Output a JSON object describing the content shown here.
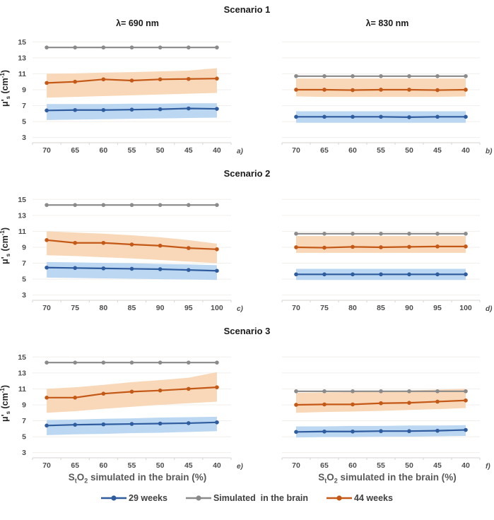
{
  "figure": {
    "scenarios": [
      "Scenario 1",
      "Scenario 2",
      "Scenario 3"
    ],
    "col_headers": [
      "λ= 690 nm",
      "λ= 830 nm"
    ],
    "ylabel_text": "μ's (cm-1)",
    "ylabel_parts": {
      "mu": "μ'",
      "sub": "s",
      "open": " (cm",
      "sup": "-1",
      "close": ")"
    },
    "xaxis_title_text": "StO2 simulated in the brain (%)",
    "xaxis_title_parts": [
      [
        "S",
        ""
      ],
      [
        "t",
        "sub"
      ],
      [
        "O",
        ""
      ],
      [
        "2",
        "sub"
      ],
      [
        " simulated in the brain (%)",
        ""
      ]
    ],
    "legend": {
      "items": [
        {
          "label": "29 weeks",
          "color": "#2e5c9e"
        },
        {
          "label": "Simulated  in the brain",
          "color": "#8a8a8a"
        },
        {
          "label": "44 weeks",
          "color": "#c35817"
        }
      ]
    }
  },
  "colors": {
    "blue": "#2e5c9e",
    "blue_band": "#bcd7f1",
    "orange": "#c35817",
    "orange_band": "#f8d8b8",
    "gray": "#8a8a8a",
    "grid": "#f1efec",
    "axis": "#d9d6d1",
    "tick_text": "#4d4d4d"
  },
  "chart_data": [
    {
      "id": "a",
      "label": "a)",
      "type": "line",
      "row": "Scenario 1",
      "col": "λ= 690 nm",
      "categories": [
        "70",
        "65",
        "60",
        "55",
        "50",
        "45",
        "40"
      ],
      "ylim": [
        3,
        15
      ],
      "yticks": [
        3,
        5,
        7,
        9,
        11,
        13,
        15
      ],
      "show_y_axis": true,
      "xlabel": "",
      "series": [
        {
          "name": "29 weeks",
          "color": "#2e5c9e",
          "band_color": "#bcd7f1",
          "values": [
            6.4,
            6.45,
            6.45,
            6.5,
            6.55,
            6.65,
            6.6
          ],
          "band_upper": [
            7.2,
            7.2,
            7.2,
            7.25,
            7.25,
            7.3,
            7.3
          ],
          "band_lower": [
            5.2,
            5.25,
            5.3,
            5.35,
            5.4,
            5.45,
            5.5
          ]
        },
        {
          "name": "Simulated in the brain",
          "color": "#8a8a8a",
          "values": [
            14.3,
            14.3,
            14.3,
            14.3,
            14.3,
            14.3,
            14.3
          ]
        },
        {
          "name": "44 weeks",
          "color": "#c35817",
          "band_color": "#f8d8b8",
          "values": [
            9.85,
            10.0,
            10.3,
            10.15,
            10.3,
            10.35,
            10.4
          ],
          "band_upper": [
            11.0,
            11.05,
            11.15,
            11.2,
            11.3,
            11.4,
            11.7
          ],
          "band_lower": [
            8.0,
            8.1,
            8.2,
            8.3,
            8.4,
            8.5,
            8.6
          ]
        }
      ]
    },
    {
      "id": "b",
      "label": "b)",
      "type": "line",
      "row": "Scenario 1",
      "col": "λ= 830 nm",
      "categories": [
        "70",
        "65",
        "60",
        "55",
        "50",
        "45",
        "40"
      ],
      "ylim": [
        3,
        15
      ],
      "yticks": [
        3,
        5,
        7,
        9,
        11,
        13,
        15
      ],
      "show_y_axis": false,
      "xlabel": "",
      "series": [
        {
          "name": "29 weeks",
          "color": "#2e5c9e",
          "band_color": "#bcd7f1",
          "values": [
            5.6,
            5.6,
            5.6,
            5.6,
            5.55,
            5.6,
            5.6
          ],
          "band_upper": [
            6.3,
            6.3,
            6.3,
            6.3,
            6.3,
            6.3,
            6.3
          ],
          "band_lower": [
            4.85,
            4.85,
            4.85,
            4.85,
            4.85,
            4.85,
            4.85
          ]
        },
        {
          "name": "Simulated in the brain",
          "color": "#8a8a8a",
          "values": [
            10.7,
            10.7,
            10.7,
            10.7,
            10.7,
            10.7,
            10.7
          ]
        },
        {
          "name": "44 weeks",
          "color": "#c35817",
          "band_color": "#f8d8b8",
          "values": [
            9.0,
            9.0,
            8.95,
            9.0,
            9.0,
            8.95,
            9.0
          ],
          "band_upper": [
            10.4,
            10.4,
            10.4,
            10.4,
            10.4,
            10.4,
            10.4
          ],
          "band_lower": [
            8.15,
            8.1,
            8.1,
            8.1,
            8.1,
            8.1,
            8.15
          ]
        }
      ]
    },
    {
      "id": "c",
      "label": "c)",
      "type": "line",
      "row": "Scenario 2",
      "col": "λ= 690 nm",
      "categories": [
        "70",
        "75",
        "80",
        "85",
        "90",
        "95",
        "100"
      ],
      "ylim": [
        3,
        15
      ],
      "yticks": [
        3,
        5,
        7,
        9,
        11,
        13,
        15
      ],
      "show_y_axis": true,
      "xlabel": "",
      "series": [
        {
          "name": "29 weeks",
          "color": "#2e5c9e",
          "band_color": "#bcd7f1",
          "values": [
            6.45,
            6.4,
            6.35,
            6.3,
            6.25,
            6.15,
            6.05
          ],
          "band_upper": [
            7.15,
            7.1,
            7.05,
            7.0,
            6.9,
            6.85,
            6.75
          ],
          "band_lower": [
            5.2,
            5.15,
            5.1,
            5.05,
            5.0,
            4.95,
            4.9
          ]
        },
        {
          "name": "Simulated in the brain",
          "color": "#8a8a8a",
          "values": [
            14.3,
            14.3,
            14.3,
            14.3,
            14.3,
            14.3,
            14.3
          ]
        },
        {
          "name": "44 weeks",
          "color": "#c35817",
          "band_color": "#f8d8b8",
          "values": [
            9.9,
            9.55,
            9.55,
            9.35,
            9.2,
            8.9,
            8.75
          ],
          "band_upper": [
            11.0,
            10.85,
            10.7,
            10.5,
            10.25,
            9.9,
            9.45
          ],
          "band_lower": [
            8.0,
            7.9,
            7.75,
            7.6,
            7.4,
            7.2,
            7.0
          ]
        }
      ]
    },
    {
      "id": "d",
      "label": "d)",
      "type": "line",
      "row": "Scenario 2",
      "col": "λ= 830 nm",
      "categories": [
        "70",
        "75",
        "80",
        "85",
        "90",
        "95",
        "100"
      ],
      "ylim": [
        3,
        15
      ],
      "yticks": [
        3,
        5,
        7,
        9,
        11,
        13,
        15
      ],
      "show_y_axis": false,
      "xlabel": "",
      "series": [
        {
          "name": "29 weeks",
          "color": "#2e5c9e",
          "band_color": "#bcd7f1",
          "values": [
            5.6,
            5.6,
            5.6,
            5.6,
            5.6,
            5.6,
            5.6
          ],
          "band_upper": [
            6.3,
            6.3,
            6.3,
            6.3,
            6.3,
            6.3,
            6.3
          ],
          "band_lower": [
            4.9,
            4.9,
            4.9,
            4.9,
            4.9,
            4.9,
            4.9
          ]
        },
        {
          "name": "Simulated in the brain",
          "color": "#8a8a8a",
          "values": [
            10.7,
            10.7,
            10.7,
            10.7,
            10.7,
            10.7,
            10.7
          ]
        },
        {
          "name": "44 weeks",
          "color": "#c35817",
          "band_color": "#f8d8b8",
          "values": [
            9.0,
            8.95,
            9.05,
            9.0,
            9.05,
            9.1,
            9.1
          ],
          "band_upper": [
            10.4,
            10.4,
            10.4,
            10.4,
            10.4,
            10.4,
            10.4
          ],
          "band_lower": [
            8.3,
            8.3,
            8.3,
            8.3,
            8.3,
            8.3,
            8.3
          ]
        }
      ]
    },
    {
      "id": "e",
      "label": "e)",
      "type": "line",
      "row": "Scenario 3",
      "col": "λ= 690 nm",
      "categories": [
        "70",
        "65",
        "60",
        "55",
        "50",
        "45",
        "40"
      ],
      "ylim": [
        3,
        15
      ],
      "yticks": [
        3,
        5,
        7,
        9,
        11,
        13,
        15
      ],
      "show_y_axis": true,
      "xlabel": "StO2 simulated in the brain (%)",
      "series": [
        {
          "name": "29 weeks",
          "color": "#2e5c9e",
          "band_color": "#bcd7f1",
          "values": [
            6.4,
            6.5,
            6.55,
            6.6,
            6.65,
            6.7,
            6.8
          ],
          "band_upper": [
            7.1,
            7.15,
            7.25,
            7.3,
            7.4,
            7.45,
            7.5
          ],
          "band_lower": [
            5.2,
            5.3,
            5.35,
            5.45,
            5.5,
            5.6,
            5.7
          ]
        },
        {
          "name": "Simulated in the brain",
          "color": "#8a8a8a",
          "values": [
            14.3,
            14.3,
            14.3,
            14.3,
            14.3,
            14.3,
            14.3
          ]
        },
        {
          "name": "44 weeks",
          "color": "#c35817",
          "band_color": "#f8d8b8",
          "values": [
            9.9,
            9.9,
            10.4,
            10.65,
            10.8,
            11.0,
            11.2
          ],
          "band_upper": [
            11.0,
            11.2,
            11.5,
            11.85,
            12.1,
            12.4,
            13.1
          ],
          "band_lower": [
            8.0,
            8.2,
            8.5,
            8.75,
            9.0,
            9.2,
            9.4
          ]
        }
      ]
    },
    {
      "id": "f",
      "label": "f)",
      "type": "line",
      "row": "Scenario 3",
      "col": "λ= 830 nm",
      "categories": [
        "70",
        "65",
        "60",
        "55",
        "50",
        "45",
        "40"
      ],
      "ylim": [
        3,
        15
      ],
      "yticks": [
        3,
        5,
        7,
        9,
        11,
        13,
        15
      ],
      "show_y_axis": false,
      "xlabel": "StO2 simulated in the brain (%)",
      "series": [
        {
          "name": "29 weeks",
          "color": "#2e5c9e",
          "band_color": "#bcd7f1",
          "values": [
            5.6,
            5.65,
            5.65,
            5.7,
            5.7,
            5.75,
            5.85
          ],
          "band_upper": [
            6.3,
            6.3,
            6.35,
            6.35,
            6.4,
            6.4,
            6.45
          ],
          "band_lower": [
            4.9,
            4.95,
            4.95,
            5.0,
            5.0,
            5.05,
            5.1
          ]
        },
        {
          "name": "Simulated in the brain",
          "color": "#8a8a8a",
          "values": [
            10.7,
            10.7,
            10.7,
            10.7,
            10.7,
            10.7,
            10.7
          ]
        },
        {
          "name": "44 weeks",
          "color": "#c35817",
          "band_color": "#f8d8b8",
          "values": [
            9.0,
            9.05,
            9.05,
            9.2,
            9.25,
            9.4,
            9.55
          ],
          "band_upper": [
            10.5,
            10.55,
            10.6,
            10.7,
            10.8,
            10.9,
            11.0
          ],
          "band_lower": [
            8.0,
            8.1,
            8.15,
            8.25,
            8.35,
            8.45,
            8.6
          ]
        }
      ]
    }
  ]
}
